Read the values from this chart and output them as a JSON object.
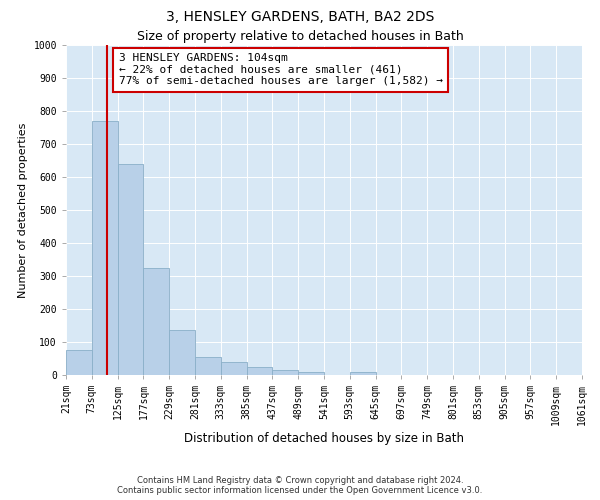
{
  "title": "3, HENSLEY GARDENS, BATH, BA2 2DS",
  "subtitle": "Size of property relative to detached houses in Bath",
  "xlabel": "Distribution of detached houses by size in Bath",
  "ylabel": "Number of detached properties",
  "bar_edges": [
    21,
    73,
    125,
    177,
    229,
    281,
    333,
    385,
    437,
    489,
    541,
    593,
    645,
    697,
    749,
    801,
    853,
    905,
    957,
    1009,
    1061
  ],
  "bar_heights": [
    75,
    770,
    640,
    325,
    135,
    55,
    40,
    25,
    15,
    10,
    0,
    10,
    0,
    0,
    0,
    0,
    0,
    0,
    0,
    0
  ],
  "bar_color": "#b8d0e8",
  "bar_edgecolor": "#8aafc8",
  "property_size": 104,
  "vline_color": "#cc0000",
  "annotation_text": "3 HENSLEY GARDENS: 104sqm\n← 22% of detached houses are smaller (461)\n77% of semi-detached houses are larger (1,582) →",
  "annotation_box_facecolor": "#ffffff",
  "annotation_box_edgecolor": "#cc0000",
  "ylim": [
    0,
    1000
  ],
  "yticks": [
    0,
    100,
    200,
    300,
    400,
    500,
    600,
    700,
    800,
    900,
    1000
  ],
  "plot_bg_color": "#d8e8f5",
  "fig_bg_color": "#ffffff",
  "footer_line1": "Contains HM Land Registry data © Crown copyright and database right 2024.",
  "footer_line2": "Contains public sector information licensed under the Open Government Licence v3.0.",
  "title_fontsize": 10,
  "subtitle_fontsize": 9,
  "xlabel_fontsize": 8.5,
  "ylabel_fontsize": 8,
  "tick_fontsize": 7,
  "annotation_fontsize": 8,
  "footer_fontsize": 6
}
